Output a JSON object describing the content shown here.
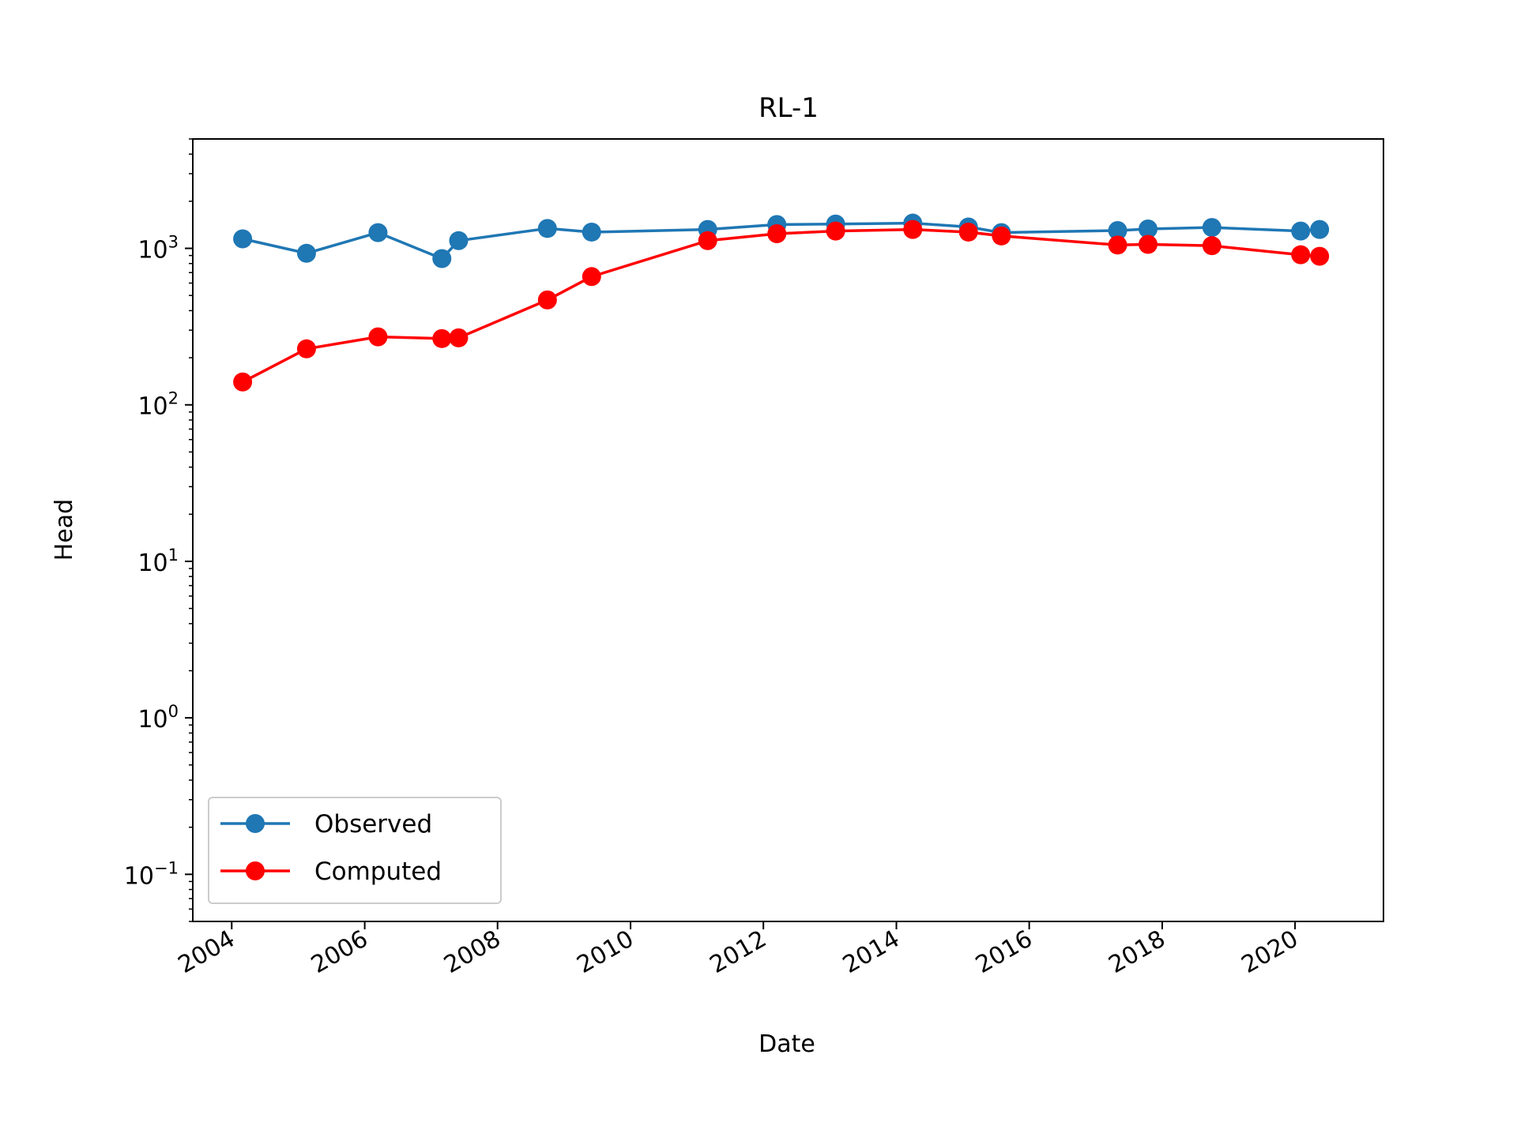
{
  "chart_data": {
    "type": "line",
    "title": "RL-1",
    "xlabel": "Date",
    "ylabel": "Head",
    "yscale": "log",
    "ylim": [
      0.05,
      5000
    ],
    "xlim": [
      "2003-06-01",
      "2021-05-01"
    ],
    "grid": false,
    "legend_position": "lower-left",
    "x_ticks": [
      "2004",
      "2006",
      "2008",
      "2010",
      "2012",
      "2014",
      "2016",
      "2018",
      "2020"
    ],
    "y_ticks": [
      {
        "base": "10",
        "exp": "−1",
        "value": 0.1
      },
      {
        "base": "10",
        "exp": "0",
        "value": 1
      },
      {
        "base": "10",
        "exp": "1",
        "value": 10
      },
      {
        "base": "10",
        "exp": "2",
        "value": 100
      },
      {
        "base": "10",
        "exp": "3",
        "value": 1000
      }
    ],
    "x": [
      "2004-03-01",
      "2005-02-15",
      "2006-03-15",
      "2007-03-01",
      "2007-06-01",
      "2008-10-01",
      "2009-06-01",
      "2011-03-01",
      "2012-03-15",
      "2013-02-01",
      "2014-04-01",
      "2015-02-01",
      "2015-08-01",
      "2017-05-01",
      "2017-10-15",
      "2018-10-01",
      "2020-02-01",
      "2020-05-15"
    ],
    "series": [
      {
        "name": "Observed",
        "color": "#1f77b4",
        "values": [
          1150,
          930,
          1260,
          860,
          1120,
          1340,
          1270,
          1320,
          1420,
          1430,
          1450,
          1370,
          1260,
          1300,
          1330,
          1360,
          1290,
          1320
        ]
      },
      {
        "name": "Computed",
        "color": "#ff0000",
        "values": [
          140,
          228,
          272,
          265,
          268,
          468,
          660,
          1120,
          1240,
          1290,
          1320,
          1270,
          1200,
          1050,
          1060,
          1040,
          910,
          890
        ]
      }
    ]
  }
}
